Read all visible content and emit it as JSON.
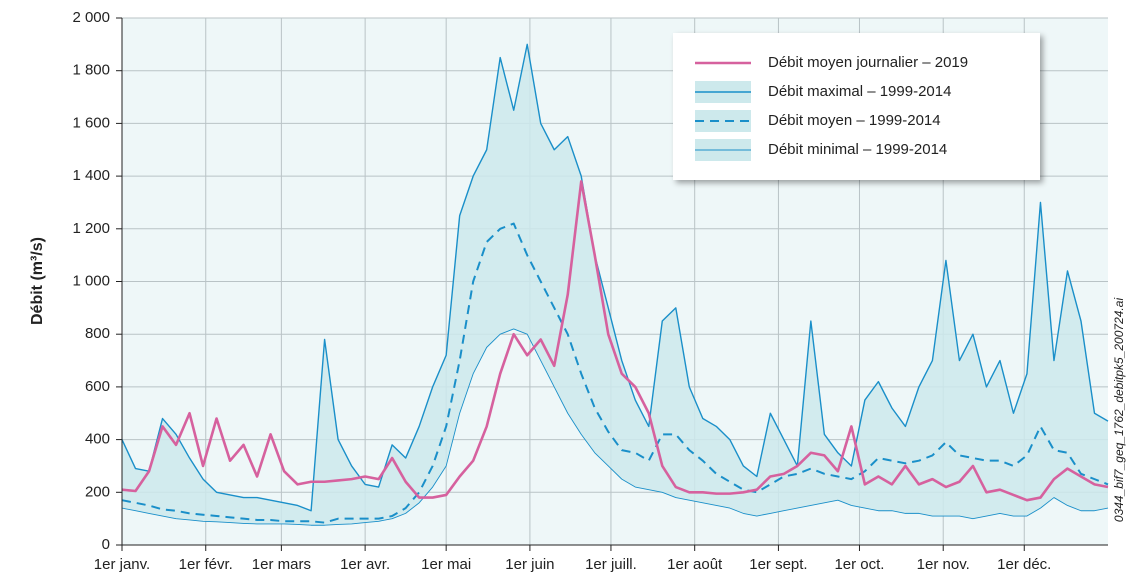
{
  "chart_data": {
    "type": "line",
    "y_label": "Débit (m³/s)",
    "side_note": "0344_bif7_geq_1762_debitpk5_200724.ai",
    "xlim": [
      0,
      365
    ],
    "xticks": [
      {
        "value": 0,
        "label": "1er janv."
      },
      {
        "value": 31,
        "label": "1er févr."
      },
      {
        "value": 59,
        "label": "1er mars"
      },
      {
        "value": 90,
        "label": "1er avr."
      },
      {
        "value": 120,
        "label": "1er mai"
      },
      {
        "value": 151,
        "label": "1er juin"
      },
      {
        "value": 181,
        "label": "1er juill."
      },
      {
        "value": 212,
        "label": "1er août"
      },
      {
        "value": 243,
        "label": "1er sept."
      },
      {
        "value": 273,
        "label": "1er oct."
      },
      {
        "value": 304,
        "label": "1er nov."
      },
      {
        "value": 334,
        "label": "1er déc."
      }
    ],
    "ylim": [
      0,
      2000
    ],
    "yticks": [
      0,
      200,
      400,
      600,
      800,
      {
        "value": 1000,
        "label": "1 000"
      },
      {
        "value": 1200,
        "label": "1 200"
      },
      {
        "value": 1400,
        "label": "1 400"
      },
      {
        "value": 1600,
        "label": "1 600"
      },
      {
        "value": 1800,
        "label": "1 800"
      },
      {
        "value": 2000,
        "label": "2 000"
      }
    ],
    "grid": true,
    "legend": "top-right",
    "x": [
      0,
      5,
      10,
      15,
      20,
      25,
      30,
      35,
      40,
      45,
      50,
      55,
      60,
      65,
      70,
      75,
      80,
      85,
      90,
      95,
      100,
      105,
      110,
      115,
      120,
      125,
      130,
      135,
      140,
      145,
      150,
      155,
      160,
      165,
      170,
      175,
      180,
      185,
      190,
      195,
      200,
      205,
      210,
      215,
      220,
      225,
      230,
      235,
      240,
      245,
      250,
      255,
      260,
      265,
      270,
      275,
      280,
      285,
      290,
      295,
      300,
      305,
      310,
      315,
      320,
      325,
      330,
      335,
      340,
      345,
      350,
      355,
      360,
      365
    ],
    "series": [
      {
        "name": "Débit moyen journalier – 2019",
        "color": "#d6619e",
        "style": "solid",
        "values": [
          210,
          205,
          280,
          450,
          380,
          500,
          300,
          480,
          320,
          380,
          260,
          420,
          280,
          230,
          240,
          240,
          245,
          250,
          260,
          250,
          330,
          240,
          180,
          180,
          190,
          260,
          320,
          450,
          650,
          800,
          720,
          780,
          680,
          950,
          1380,
          1100,
          800,
          650,
          600,
          500,
          300,
          220,
          200,
          200,
          195,
          195,
          200,
          210,
          260,
          270,
          300,
          350,
          340,
          280,
          450,
          230,
          260,
          230,
          300,
          230,
          250,
          220,
          240,
          300,
          200,
          210,
          190,
          170,
          180,
          250,
          290,
          260,
          230,
          220
        ]
      },
      {
        "name": "Débit maximal – 1999-2014",
        "color": "#1a8fc9",
        "style": "solid",
        "values": [
          400,
          290,
          280,
          480,
          420,
          330,
          250,
          200,
          190,
          180,
          180,
          170,
          160,
          150,
          130,
          780,
          400,
          300,
          230,
          220,
          380,
          330,
          450,
          600,
          720,
          1250,
          1400,
          1500,
          1850,
          1650,
          1900,
          1600,
          1500,
          1550,
          1400,
          1100,
          900,
          700,
          550,
          450,
          850,
          900,
          600,
          480,
          450,
          400,
          300,
          260,
          500,
          400,
          300,
          850,
          420,
          350,
          300,
          550,
          620,
          520,
          450,
          600,
          700,
          1080,
          700,
          800,
          600,
          700,
          500,
          650,
          1300,
          700,
          1040,
          850,
          500,
          470
        ]
      },
      {
        "name": "Débit moyen – 1999-2014",
        "color": "#1a8fc9",
        "style": "dashed",
        "values": [
          170,
          160,
          150,
          135,
          130,
          120,
          115,
          110,
          105,
          100,
          95,
          95,
          90,
          90,
          90,
          85,
          100,
          100,
          100,
          100,
          110,
          140,
          200,
          300,
          450,
          700,
          1000,
          1150,
          1200,
          1220,
          1100,
          1000,
          900,
          800,
          650,
          520,
          430,
          360,
          350,
          320,
          420,
          420,
          360,
          320,
          270,
          240,
          210,
          200,
          230,
          260,
          270,
          290,
          270,
          260,
          250,
          280,
          330,
          320,
          310,
          320,
          340,
          390,
          340,
          330,
          320,
          320,
          300,
          340,
          450,
          360,
          350,
          270,
          250,
          230
        ]
      },
      {
        "name": "Débit minimal – 1999-2014",
        "color": "#1a8fc9",
        "style": "thin",
        "values": [
          140,
          130,
          120,
          110,
          100,
          95,
          90,
          88,
          85,
          82,
          80,
          80,
          80,
          78,
          75,
          75,
          78,
          80,
          85,
          90,
          100,
          120,
          160,
          220,
          300,
          500,
          650,
          750,
          800,
          820,
          800,
          700,
          600,
          500,
          420,
          350,
          300,
          250,
          220,
          210,
          200,
          180,
          170,
          160,
          150,
          140,
          120,
          110,
          120,
          130,
          140,
          150,
          160,
          170,
          150,
          140,
          130,
          130,
          120,
          120,
          110,
          110,
          110,
          100,
          110,
          120,
          110,
          110,
          140,
          180,
          150,
          130,
          130,
          140
        ]
      }
    ]
  }
}
